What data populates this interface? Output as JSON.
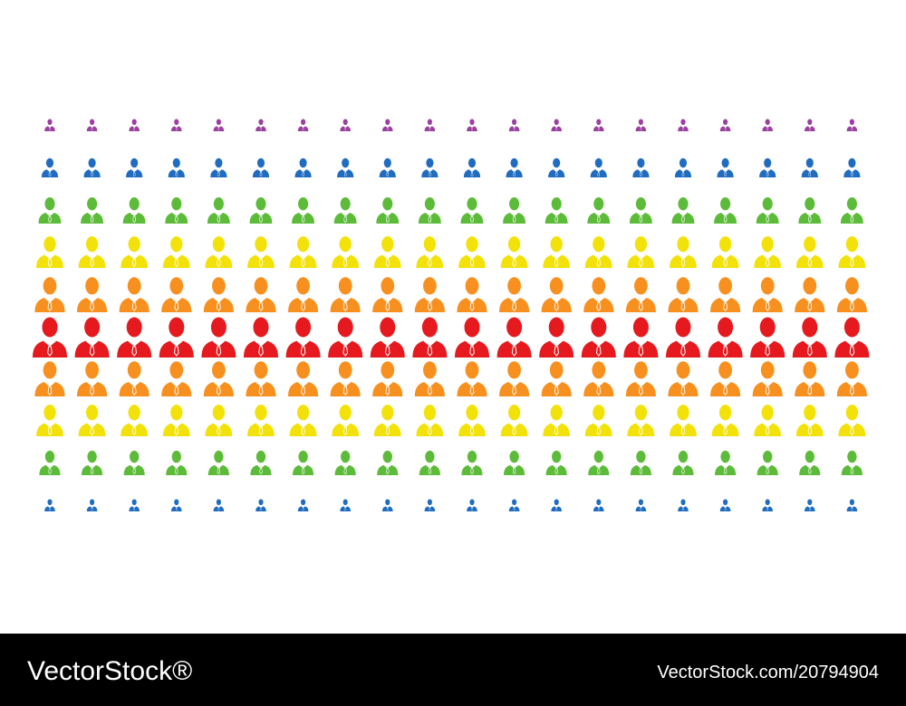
{
  "footer": {
    "brand": "VectorStock®",
    "url": "VectorStock.com/20794904"
  }
}
